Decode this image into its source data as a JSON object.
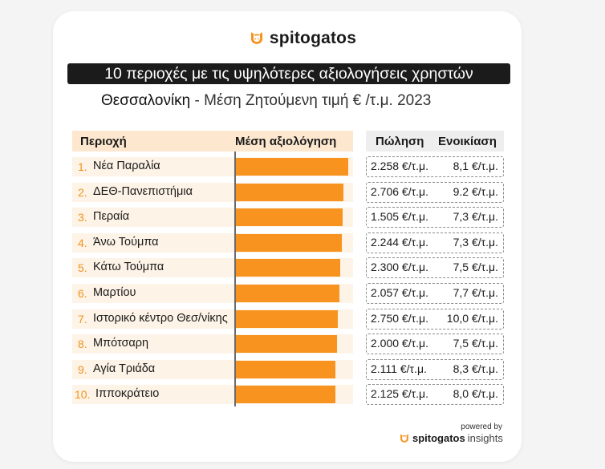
{
  "brand": {
    "name": "spitogatos",
    "icon": "cat-head-icon",
    "accent": "#f7931e"
  },
  "title": "10 περιοχές με τις υψηλότερες αξιολογήσεις χρηστών",
  "subtitle": {
    "city": "Θεσσαλονίκη",
    "rest": " - Μέση Ζητούμενη τιμή € /τ.μ. 2023"
  },
  "headers": {
    "area": "Περιοχή",
    "rating": "Μέση αξιολόγηση",
    "sale": "Πώληση",
    "rent": "Ενοικίαση"
  },
  "rows": [
    {
      "rank": "1.",
      "area": "Νέα Παραλία",
      "sale": "2.258 €/τ.μ.",
      "rent": "8,1 €/τ.μ."
    },
    {
      "rank": "2.",
      "area": "ΔΕΘ-Πανεπιστήμια",
      "sale": "2.706 €/τ.μ.",
      "rent": "9.2 €/τ.μ."
    },
    {
      "rank": "3.",
      "area": "Περαία",
      "sale": "1.505 €/τ.μ.",
      "rent": "7,3 €/τ.μ."
    },
    {
      "rank": "4.",
      "area": "Άνω Τούμπα",
      "sale": "2.244 €/τ.μ.",
      "rent": "7,3 €/τ.μ."
    },
    {
      "rank": "5.",
      "area": "Κάτω Τούμπα",
      "sale": "2.300 €/τ.μ.",
      "rent": "7,5 €/τ.μ."
    },
    {
      "rank": "6.",
      "area": "Μαρτίου",
      "sale": "2.057 €/τ.μ.",
      "rent": "7,7 €/τ.μ."
    },
    {
      "rank": "7.",
      "area": "Ιστορικό κέντρο Θεσ/νίκης",
      "sale": "2.750 €/τ.μ.",
      "rent": "10,0 €/τ.μ."
    },
    {
      "rank": "8.",
      "area": "Μπότσαρη",
      "sale": "2.000 €/τ.μ.",
      "rent": "7,5 €/τ.μ."
    },
    {
      "rank": "9.",
      "area": "Αγία Τριάδα",
      "sale": "2.111 €/τ.μ.",
      "rent": "8,3 €/τ.μ."
    },
    {
      "rank": "10.",
      "area": "Ιπποκράτειο",
      "sale": "2.125 €/τ.μ.",
      "rent": "8,0 €/τ.μ."
    }
  ],
  "footer": {
    "powered_by": "powered by",
    "brand": "spitogatos",
    "suffix": "insights"
  },
  "chart_data": {
    "type": "bar",
    "orientation": "horizontal",
    "title": "10 περιοχές με τις υψηλότερες αξιολογήσεις χρηστών",
    "categories": [
      "Νέα Παραλία",
      "ΔΕΘ-Πανεπιστήμια",
      "Περαία",
      "Άνω Τούμπα",
      "Κάτω Τούμπα",
      "Μαρτίου",
      "Ιστορικό κέντρο Θεσ/νίκης",
      "Μπότσαρη",
      "Αγία Τριάδα",
      "Ιπποκράτειο"
    ],
    "values": [
      1.0,
      0.96,
      0.95,
      0.94,
      0.93,
      0.92,
      0.91,
      0.9,
      0.89,
      0.89
    ],
    "value_scale": "relative (no numeric axis shown)",
    "color": "#f7931e"
  }
}
